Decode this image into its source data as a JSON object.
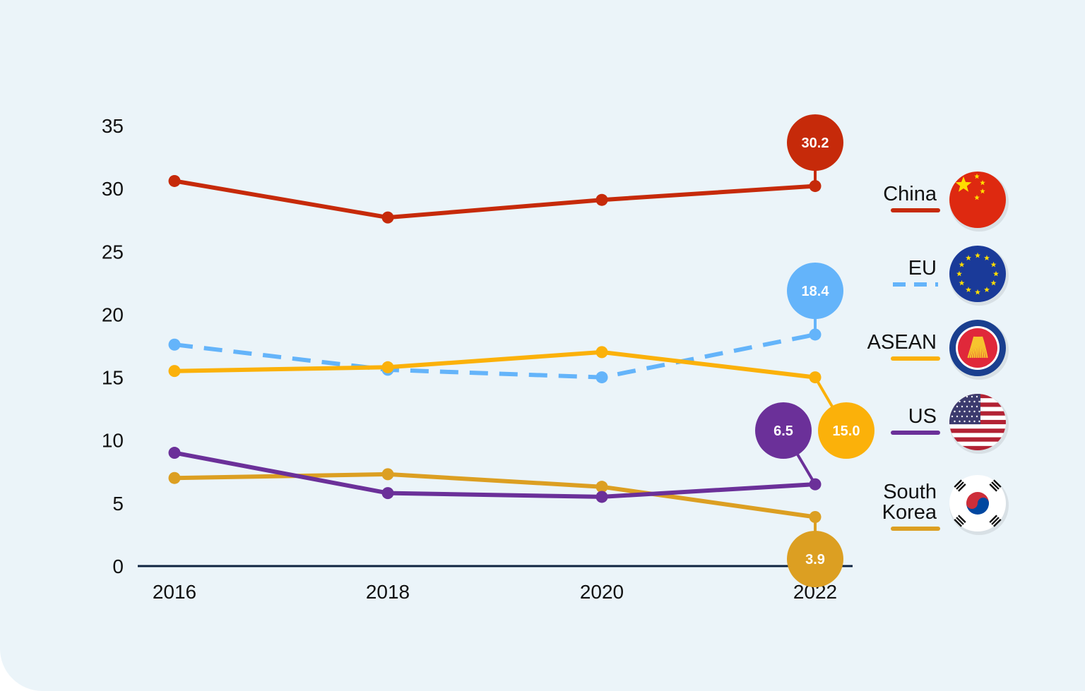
{
  "chart_data": {
    "type": "line",
    "x": [
      "2016",
      "2018",
      "2020",
      "2022"
    ],
    "ylim": [
      0,
      35
    ],
    "yticks": [
      0,
      5,
      10,
      15,
      20,
      25,
      30,
      35
    ],
    "grid": false,
    "legend_position": "right",
    "series": [
      {
        "name": "China",
        "values": [
          30.6,
          27.7,
          29.1,
          30.2
        ],
        "color": "#c62a0a",
        "dashed": false,
        "end_label": "30.2",
        "flag_icon": "china-flag-icon"
      },
      {
        "name": "EU",
        "values": [
          17.6,
          15.6,
          15.0,
          18.4
        ],
        "color": "#64b4fa",
        "dashed": true,
        "end_label": "18.4",
        "flag_icon": "eu-flag-icon"
      },
      {
        "name": "ASEAN",
        "values": [
          15.5,
          15.8,
          17.0,
          15.0
        ],
        "color": "#fbb10a",
        "dashed": false,
        "end_label": "15.0",
        "flag_icon": "asean-flag-icon"
      },
      {
        "name": "US",
        "values": [
          9.0,
          5.8,
          5.5,
          6.5
        ],
        "color": "#6b3099",
        "dashed": false,
        "end_label": "6.5",
        "flag_icon": "us-flag-icon"
      },
      {
        "name_lines": [
          "South",
          "Korea"
        ],
        "values": [
          7.0,
          7.3,
          6.3,
          3.9
        ],
        "color": "#dc9f22",
        "dashed": false,
        "end_label": "3.9",
        "flag_icon": "south-korea-flag-icon"
      }
    ]
  }
}
